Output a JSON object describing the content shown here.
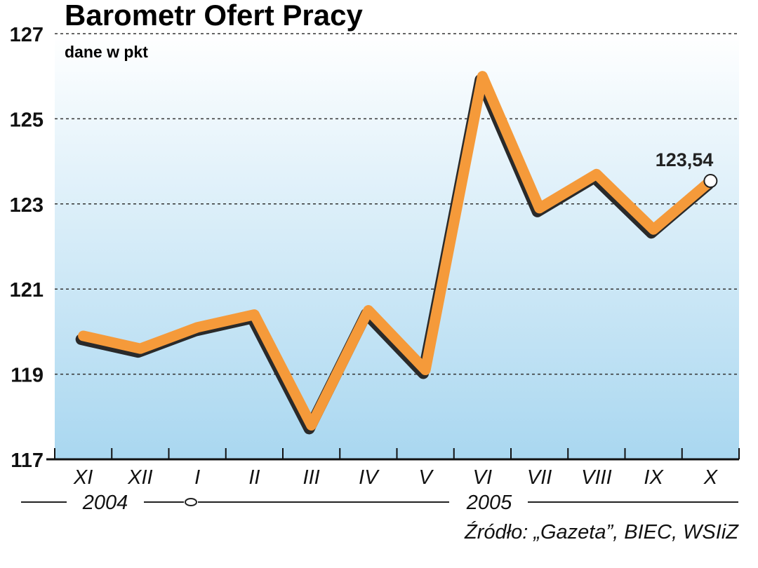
{
  "chart_data": {
    "type": "line",
    "title": "Barometr Ofert Pracy",
    "subtitle": "dane w pkt",
    "categories": [
      "XI",
      "XII",
      "I",
      "II",
      "III",
      "IV",
      "V",
      "VI",
      "VII",
      "VIII",
      "IX",
      "X"
    ],
    "series": [
      {
        "values": [
          119.9,
          119.6,
          120.1,
          120.4,
          117.8,
          120.5,
          119.1,
          126.0,
          122.9,
          123.7,
          122.4,
          123.54
        ]
      }
    ],
    "yticks": [
      117,
      119,
      121,
      123,
      125,
      127
    ],
    "ylim": [
      117,
      127
    ],
    "years": [
      "2004",
      "2005"
    ],
    "last_value_label": "123,54",
    "source": "Źródło: „Gazeta”, BIEC, WSIiZ",
    "grid": true,
    "line_color": "#f59a3a",
    "shadow_color": "#2a2a2a",
    "bg_top": "#ffffff",
    "bg_bottom": "#a9d7f0"
  }
}
